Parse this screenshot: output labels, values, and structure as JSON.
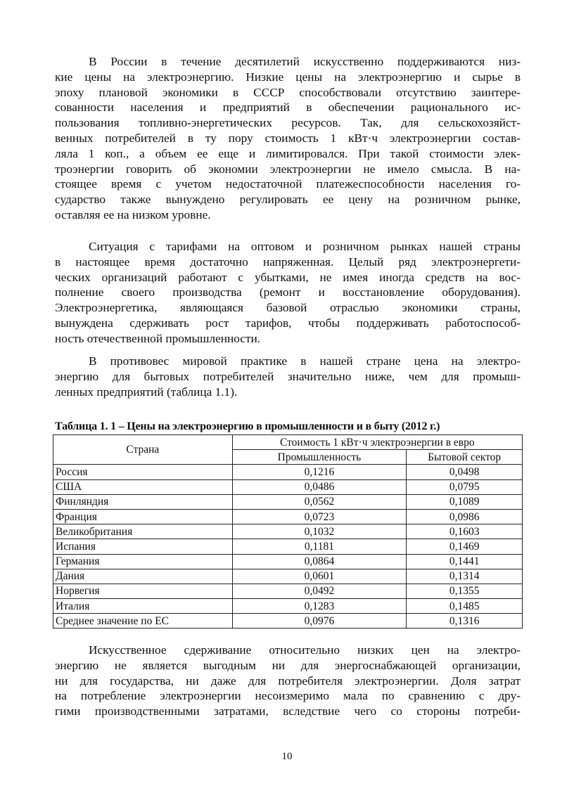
{
  "paragraphs": [
    [
      "В России в течение десятилетий искусственно поддерживаются низ-",
      "кие цены на электроэнергию. Низкие цены на электроэнергию и сырье в",
      "эпоху плановой экономики в СССР способствовали отсутствию заинтере-",
      "сованности населения и предприятий в обеспечении рационального ис-",
      "пользования топливно-энергетических ресурсов. Так, для сельскохозяйст-",
      "венных потребителей в ту пору стоимость 1 кВт·ч электроэнергии состав-",
      "ляла 1 коп., а объем ее еще и лимитировался. При такой стоимости элек-",
      "троэнергии говорить об экономии электроэнергии не имело смысла. В на-",
      "стоящее время с учетом недостаточной платежеспособности населения го-",
      "сударство также вынуждено регулировать ее цену на розничном рынке,",
      "оставляя ее на низком уровне."
    ],
    [
      "Ситуация с тарифами на оптовом и розничном рынках нашей страны",
      "в настоящее время достаточно напряженная. Целый ряд электроэнергети-",
      "ческих организаций работают с убытками, не имея иногда средств на вос-",
      "полнение своего производства (ремонт и восстановление оборудования).",
      "Электроэнергетика, являющаяся базовой отраслью экономики страны,",
      "вынуждена сдерживать рост тарифов, чтобы поддерживать работоспособ-",
      "ность отечественной промышленности."
    ],
    [
      "В противовес мировой практике в нашей стране цена на электро-",
      "энергию для бытовых потребителей значительно ниже, чем для промыш-",
      "ленных предприятий (таблица 1.1)."
    ],
    [
      "Искусственное сдерживание относительно низких цен на электро-",
      "энергию не является выгодным ни для энергоснабжающей организации,",
      "ни для государства, ни даже для потребителя электроэнергии. Доля затрат",
      "на потребление электроэнергии несоизмеримо мала по сравнению с дру-",
      "гими производственными затратами, вследствие чего со стороны потреби-"
    ]
  ],
  "table": {
    "caption": "Таблица 1. 1 – Цены на электроэнергию в промышленности и в быту (2012 г.)",
    "header_country": "Страна",
    "header_group": "Стоимость 1 кВт·ч электроэнергии в евро",
    "header_industry": "Промышленность",
    "header_household": "Бытовой сектор",
    "rows": [
      [
        "Россия",
        "0,1216",
        "0,0498"
      ],
      [
        "США",
        "0,0486",
        "0,0795"
      ],
      [
        "Финляндия",
        "0,0562",
        "0,1089"
      ],
      [
        "Франция",
        "0,0723",
        "0,0986"
      ],
      [
        "Великобритания",
        "0,1032",
        "0,1603"
      ],
      [
        "Испания",
        "0,1181",
        "0,1469"
      ],
      [
        "Германия",
        "0,0864",
        "0,1441"
      ],
      [
        "Дания",
        "0,0601",
        "0,1314"
      ],
      [
        "Норвегия",
        "0,0492",
        "0,1355"
      ],
      [
        "Италия",
        "0,1283",
        "0,1485"
      ],
      [
        "Среднее значение по ЕС",
        "0,0976",
        "0,1316"
      ]
    ]
  },
  "page_number": "10"
}
